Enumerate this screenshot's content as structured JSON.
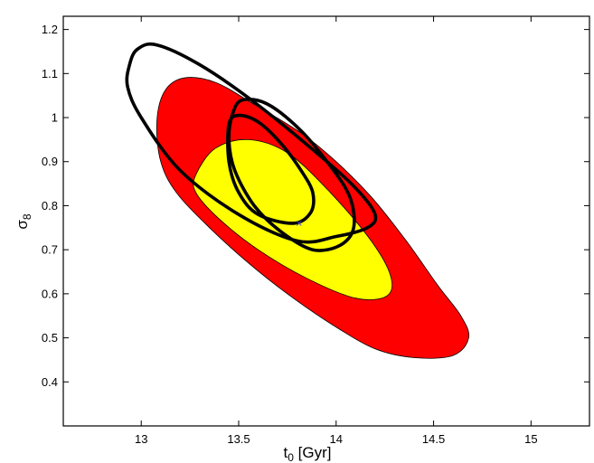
{
  "chart_data": {
    "type": "contour",
    "xlabel": {
      "main": "t",
      "sub": "0",
      "unit": " [Gyr]"
    },
    "ylabel": {
      "main": "σ",
      "sub": "8"
    },
    "xlim": [
      12.6,
      15.3
    ],
    "ylim": [
      0.3,
      1.23
    ],
    "xticks": [
      13,
      13.5,
      14,
      14.5,
      15
    ],
    "xtick_labels": [
      "13",
      "13.5",
      "14",
      "14.5",
      "15"
    ],
    "yticks": [
      0.4,
      0.5,
      0.6,
      0.7,
      0.8,
      0.9,
      1,
      1.1,
      1.2
    ],
    "ytick_labels": [
      "0.4",
      "0.5",
      "0.6",
      "0.7",
      "0.8",
      "0.9",
      "1",
      "1.1",
      "1.2"
    ],
    "grid": false,
    "colors": {
      "outer_filled": "#ff0000",
      "inner_filled": "#ffff00",
      "line_contours": "#000000",
      "best_fit": "#4444cc"
    },
    "best_fit": {
      "x": 13.81,
      "y": 0.76
    },
    "filled_contours": [
      {
        "level": "outer",
        "color": "#ff0000",
        "points": [
          [
            13.08,
            0.99
          ],
          [
            13.12,
            1.06
          ],
          [
            13.22,
            1.09
          ],
          [
            13.38,
            1.08
          ],
          [
            13.58,
            1.03
          ],
          [
            13.82,
            0.965
          ],
          [
            14.0,
            0.9
          ],
          [
            14.18,
            0.82
          ],
          [
            14.36,
            0.72
          ],
          [
            14.52,
            0.62
          ],
          [
            14.64,
            0.55
          ],
          [
            14.68,
            0.5
          ],
          [
            14.6,
            0.46
          ],
          [
            14.4,
            0.455
          ],
          [
            14.2,
            0.475
          ],
          [
            13.98,
            0.53
          ],
          [
            13.75,
            0.6
          ],
          [
            13.55,
            0.67
          ],
          [
            13.35,
            0.75
          ],
          [
            13.18,
            0.83
          ],
          [
            13.1,
            0.9
          ]
        ]
      },
      {
        "level": "inner",
        "color": "#ffff00",
        "points": [
          [
            13.28,
            0.87
          ],
          [
            13.38,
            0.93
          ],
          [
            13.55,
            0.95
          ],
          [
            13.75,
            0.92
          ],
          [
            13.97,
            0.83
          ],
          [
            14.18,
            0.72
          ],
          [
            14.28,
            0.64
          ],
          [
            14.26,
            0.595
          ],
          [
            14.1,
            0.59
          ],
          [
            13.85,
            0.635
          ],
          [
            13.6,
            0.7
          ],
          [
            13.4,
            0.77
          ],
          [
            13.28,
            0.83
          ]
        ]
      }
    ],
    "line_contours": [
      {
        "level": "outer",
        "points": [
          [
            12.94,
            1.12
          ],
          [
            12.98,
            1.155
          ],
          [
            13.08,
            1.165
          ],
          [
            13.3,
            1.12
          ],
          [
            13.58,
            1.035
          ],
          [
            13.9,
            0.92
          ],
          [
            14.1,
            0.84
          ],
          [
            14.2,
            0.78
          ],
          [
            14.16,
            0.75
          ],
          [
            14.0,
            0.73
          ],
          [
            13.8,
            0.72
          ],
          [
            13.5,
            0.78
          ],
          [
            13.2,
            0.88
          ],
          [
            13.0,
            1.0
          ],
          [
            12.93,
            1.07
          ]
        ]
      },
      {
        "level": "middle",
        "points": [
          [
            13.47,
            1.01
          ],
          [
            13.52,
            1.04
          ],
          [
            13.65,
            1.03
          ],
          [
            13.82,
            0.97
          ],
          [
            13.97,
            0.89
          ],
          [
            14.07,
            0.82
          ],
          [
            14.09,
            0.75
          ],
          [
            14.02,
            0.71
          ],
          [
            13.88,
            0.7
          ],
          [
            13.72,
            0.74
          ],
          [
            13.58,
            0.8
          ],
          [
            13.48,
            0.88
          ],
          [
            13.45,
            0.95
          ]
        ]
      },
      {
        "level": "inner",
        "points": [
          [
            13.45,
            0.985
          ],
          [
            13.5,
            1.005
          ],
          [
            13.6,
            0.99
          ],
          [
            13.72,
            0.94
          ],
          [
            13.82,
            0.88
          ],
          [
            13.88,
            0.83
          ],
          [
            13.87,
            0.785
          ],
          [
            13.78,
            0.76
          ],
          [
            13.6,
            0.78
          ],
          [
            13.5,
            0.83
          ],
          [
            13.45,
            0.9
          ]
        ]
      }
    ]
  }
}
